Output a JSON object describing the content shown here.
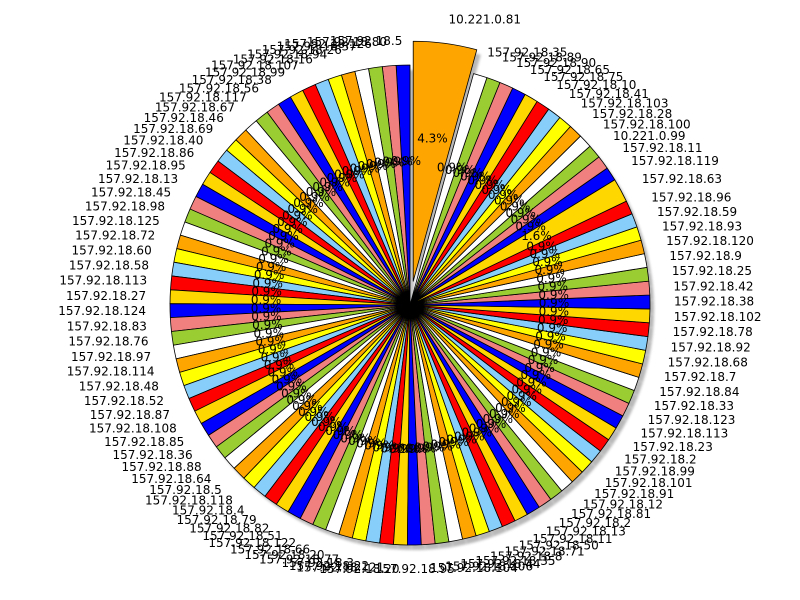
{
  "chart_data": {
    "type": "pie",
    "title": "",
    "shadow": true,
    "colors": [
      "#0000ff",
      "#f08080",
      "#9acd32",
      "#ffffff",
      "#ffa500",
      "#ffff00",
      "#87cefa",
      "#ff0000",
      "#ffd700"
    ],
    "start_angle_deg": 90,
    "autopct_format": "%.1f%%",
    "slices": [
      {
        "label": "157.92.18.5",
        "value": 0.8
      },
      {
        "label": "157.92.18.80",
        "value": 0.8
      },
      {
        "label": "157.92.18.126",
        "value": 0.8
      },
      {
        "label": "157.92.18.37",
        "value": 0.8
      },
      {
        "label": "157.92.18.26",
        "value": 0.8
      },
      {
        "label": "157.92.18.94",
        "value": 0.8
      },
      {
        "label": "157.92.18.16",
        "value": 0.8
      },
      {
        "label": "157.92.18.107",
        "value": 0.8
      },
      {
        "label": "157.92.18.99",
        "value": 0.8
      },
      {
        "label": "157.92.18.38",
        "value": 0.8
      },
      {
        "label": "157.92.18.56",
        "value": 0.8
      },
      {
        "label": "157.92.18.117",
        "value": 0.8
      },
      {
        "label": "157.92.18.67",
        "value": 0.8
      },
      {
        "label": "157.92.18.46",
        "value": 0.8
      },
      {
        "label": "157.92.18.69",
        "value": 0.8
      },
      {
        "label": "157.92.18.40",
        "value": 0.8
      },
      {
        "label": "157.92.18.86",
        "value": 0.8
      },
      {
        "label": "157.92.18.95",
        "value": 0.8
      },
      {
        "label": "157.92.18.13",
        "value": 0.8
      },
      {
        "label": "157.92.18.45",
        "value": 0.8
      },
      {
        "label": "157.92.18.98",
        "value": 0.8
      },
      {
        "label": "157.92.18.125",
        "value": 0.8
      },
      {
        "label": "157.92.18.72",
        "value": 0.8
      },
      {
        "label": "157.92.18.60",
        "value": 0.8
      },
      {
        "label": "157.92.18.58",
        "value": 0.8
      },
      {
        "label": "157.92.18.113",
        "value": 0.8
      },
      {
        "label": "157.92.18.27",
        "value": 0.8
      },
      {
        "label": "157.92.18.124",
        "value": 0.8
      },
      {
        "label": "157.92.18.83",
        "value": 0.8
      },
      {
        "label": "157.92.18.76",
        "value": 0.8
      },
      {
        "label": "157.92.18.97",
        "value": 0.8
      },
      {
        "label": "157.92.18.114",
        "value": 0.8
      },
      {
        "label": "157.92.18.48",
        "value": 0.8
      },
      {
        "label": "157.92.18.52",
        "value": 0.8
      },
      {
        "label": "157.92.18.87",
        "value": 0.8
      },
      {
        "label": "157.92.18.108",
        "value": 0.8
      },
      {
        "label": "157.92.18.85",
        "value": 0.8
      },
      {
        "label": "157.92.18.36",
        "value": 0.8
      },
      {
        "label": "157.92.18.88",
        "value": 0.8
      },
      {
        "label": "157.92.18.64",
        "value": 0.8
      },
      {
        "label": "157.92.18.5",
        "value": 0.8
      },
      {
        "label": "157.92.18.118",
        "value": 0.8
      },
      {
        "label": "157.92.18.4",
        "value": 0.8
      },
      {
        "label": "157.92.18.79",
        "value": 0.8
      },
      {
        "label": "157.92.18.82",
        "value": 0.8
      },
      {
        "label": "157.92.18.51",
        "value": 0.8
      },
      {
        "label": "157.92.18.122",
        "value": 0.8
      },
      {
        "label": "157.92.18.66",
        "value": 0.8
      },
      {
        "label": "157.92.18.20",
        "value": 0.8
      },
      {
        "label": "157.92.18.77",
        "value": 0.8
      },
      {
        "label": "157.92.18.3",
        "value": 0.8
      },
      {
        "label": "157.92.18.22",
        "value": 0.8
      },
      {
        "label": "157.92.18.121",
        "value": 0.8
      },
      {
        "label": "157.92.18.20",
        "value": 0.8
      },
      {
        "label": "157.92.18.95",
        "value": 0.8
      },
      {
        "label": "157.92.18.104",
        "value": 0.8
      },
      {
        "label": "157.92.18.106",
        "value": 0.8
      },
      {
        "label": "157.92.18.44",
        "value": 0.8
      },
      {
        "label": "157.92.18.35",
        "value": 0.8
      },
      {
        "label": "157.92.18.8",
        "value": 0.8
      },
      {
        "label": "157.92.18.71",
        "value": 0.8
      },
      {
        "label": "157.92.18.50",
        "value": 0.8
      },
      {
        "label": "157.92.18.11",
        "value": 0.8
      },
      {
        "label": "157.92.18.13",
        "value": 0.8
      },
      {
        "label": "157.92.18.2",
        "value": 0.8
      },
      {
        "label": "157.92.18.81",
        "value": 0.8
      },
      {
        "label": "157.92.18.12",
        "value": 0.8
      },
      {
        "label": "157.92.18.91",
        "value": 0.8
      },
      {
        "label": "157.92.18.101",
        "value": 0.8
      },
      {
        "label": "157.92.18.99",
        "value": 0.8
      },
      {
        "label": "157.92.18.2",
        "value": 0.8
      },
      {
        "label": "157.92.18.23",
        "value": 0.8
      },
      {
        "label": "157.92.18.113",
        "value": 0.8
      },
      {
        "label": "157.92.18.123",
        "value": 0.8
      },
      {
        "label": "157.92.18.33",
        "value": 0.8
      },
      {
        "label": "157.92.18.84",
        "value": 0.8
      },
      {
        "label": "157.92.18.7",
        "value": 0.8
      },
      {
        "label": "157.92.18.68",
        "value": 0.8
      },
      {
        "label": "157.92.18.92",
        "value": 0.8
      },
      {
        "label": "157.92.18.78",
        "value": 0.8
      },
      {
        "label": "157.92.18.102",
        "value": 0.8
      },
      {
        "label": "157.92.18.38",
        "value": 0.8
      },
      {
        "label": "157.92.18.42",
        "value": 0.8
      },
      {
        "label": "157.92.18.25",
        "value": 0.8
      },
      {
        "label": "157.92.18.9",
        "value": 0.8
      },
      {
        "label": "157.92.18.120",
        "value": 0.8
      },
      {
        "label": "157.92.18.93",
        "value": 0.8
      },
      {
        "label": "157.92.18.59",
        "value": 0.8
      },
      {
        "label": "157.92.18.96",
        "value": 0.8
      },
      {
        "label": "157.92.18.63",
        "value": 1.4
      },
      {
        "label": "157.92.18.119",
        "value": 0.8
      },
      {
        "label": "157.92.18.11",
        "value": 0.8
      },
      {
        "label": "10.221.0.99",
        "value": 0.8
      },
      {
        "label": "157.92.18.100",
        "value": 0.8
      },
      {
        "label": "157.92.18.28",
        "value": 0.8
      },
      {
        "label": "157.92.18.103",
        "value": 0.8
      },
      {
        "label": "157.92.18.41",
        "value": 0.8
      },
      {
        "label": "157.92.18.10",
        "value": 0.8
      },
      {
        "label": "157.92.18.75",
        "value": 0.8
      },
      {
        "label": "157.92.18.65",
        "value": 0.8
      },
      {
        "label": "157.92.18.90",
        "value": 0.8
      },
      {
        "label": "157.92.18.89",
        "value": 0.8
      },
      {
        "label": "157.92.18.35",
        "value": 0.8
      },
      {
        "label": "10.221.0.81",
        "value": 3.7
      }
    ]
  }
}
